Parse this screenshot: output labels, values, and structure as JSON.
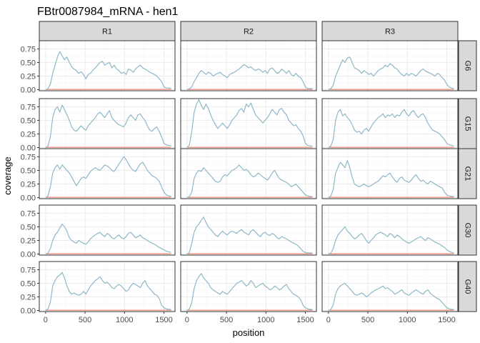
{
  "chart_data": {
    "type": "line",
    "title": "FBtr0087984_mRNA - hen1",
    "xlabel": "position",
    "ylabel": "coverage",
    "xlim": [
      -80,
      1640
    ],
    "ylim": [
      -0.02,
      0.9
    ],
    "x_ticks": [
      0,
      500,
      1000,
      1500
    ],
    "x_tick_labels": [
      "0",
      "500",
      "1000",
      "1500"
    ],
    "y_ticks": [
      0,
      0.25,
      0.5,
      0.75
    ],
    "y_tick_labels": [
      "0.00",
      "0.25",
      "0.50",
      "0.75"
    ],
    "columns": [
      "R1",
      "R2",
      "R3"
    ],
    "rows": [
      "G6",
      "G15",
      "G21",
      "G30",
      "G40"
    ],
    "grid": true,
    "colors": {
      "series_main": "#8fb8c8",
      "series_base": "#f08a78",
      "strip_fill": "#d9d9d9",
      "panel_border": "#333333",
      "grid_major": "#ebebeb",
      "grid_minor": "#f5f5f5"
    },
    "x": [
      0,
      30,
      60,
      90,
      120,
      150,
      180,
      210,
      240,
      270,
      300,
      330,
      360,
      390,
      420,
      450,
      480,
      510,
      540,
      570,
      600,
      630,
      660,
      690,
      720,
      750,
      780,
      810,
      840,
      870,
      900,
      930,
      960,
      990,
      1020,
      1050,
      1080,
      1110,
      1140,
      1170,
      1200,
      1230,
      1260,
      1290,
      1320,
      1350,
      1380,
      1410,
      1440,
      1470,
      1500,
      1530,
      1560,
      1590
    ],
    "baseline": [
      0.005,
      0.005,
      0.005,
      0.005,
      0.005,
      0.005,
      0.005,
      0.005,
      0.005,
      0.005,
      0.005,
      0.005,
      0.005,
      0.005,
      0.005,
      0.005,
      0.005,
      0.005,
      0.005,
      0.005,
      0.005,
      0.005,
      0.005,
      0.005,
      0.005,
      0.005,
      0.005,
      0.005,
      0.005,
      0.005,
      0.005,
      0.005,
      0.005,
      0.005,
      0.005,
      0.005,
      0.005,
      0.005,
      0.005,
      0.005,
      0.005,
      0.005,
      0.005,
      0.005,
      0.005,
      0.005,
      0.005,
      0.005,
      0.005,
      0.005,
      0.005,
      0.005,
      0.005,
      0.005
    ],
    "panels": [
      {
        "row": "G6",
        "col": "R1",
        "values": [
          0.0,
          0.02,
          0.1,
          0.3,
          0.45,
          0.6,
          0.7,
          0.62,
          0.55,
          0.6,
          0.5,
          0.42,
          0.38,
          0.35,
          0.3,
          0.33,
          0.28,
          0.2,
          0.28,
          0.3,
          0.36,
          0.4,
          0.45,
          0.5,
          0.52,
          0.45,
          0.48,
          0.5,
          0.4,
          0.45,
          0.38,
          0.35,
          0.3,
          0.32,
          0.28,
          0.38,
          0.36,
          0.32,
          0.38,
          0.42,
          0.45,
          0.4,
          0.38,
          0.35,
          0.32,
          0.3,
          0.28,
          0.25,
          0.2,
          0.15,
          0.05,
          0.03,
          0.03,
          0.02
        ]
      },
      {
        "row": "G6",
        "col": "R2",
        "values": [
          0.0,
          0.02,
          0.05,
          0.15,
          0.22,
          0.3,
          0.35,
          0.32,
          0.28,
          0.32,
          0.3,
          0.25,
          0.28,
          0.3,
          0.32,
          0.28,
          0.25,
          0.22,
          0.28,
          0.3,
          0.32,
          0.35,
          0.38,
          0.42,
          0.46,
          0.44,
          0.4,
          0.42,
          0.38,
          0.35,
          0.38,
          0.36,
          0.32,
          0.35,
          0.3,
          0.38,
          0.4,
          0.35,
          0.3,
          0.32,
          0.38,
          0.34,
          0.3,
          0.35,
          0.28,
          0.25,
          0.3,
          0.25,
          0.22,
          0.15,
          0.05,
          0.02,
          0.02,
          0.02
        ]
      },
      {
        "row": "G6",
        "col": "R3",
        "values": [
          0.0,
          0.02,
          0.08,
          0.25,
          0.35,
          0.45,
          0.55,
          0.5,
          0.58,
          0.6,
          0.5,
          0.4,
          0.38,
          0.35,
          0.3,
          0.35,
          0.32,
          0.28,
          0.3,
          0.25,
          0.3,
          0.35,
          0.38,
          0.4,
          0.45,
          0.42,
          0.48,
          0.45,
          0.4,
          0.38,
          0.32,
          0.28,
          0.25,
          0.3,
          0.26,
          0.3,
          0.28,
          0.25,
          0.3,
          0.35,
          0.38,
          0.34,
          0.32,
          0.3,
          0.28,
          0.25,
          0.3,
          0.28,
          0.22,
          0.18,
          0.1,
          0.05,
          0.03,
          0.02
        ]
      },
      {
        "row": "G15",
        "col": "R1",
        "values": [
          0.0,
          0.03,
          0.2,
          0.55,
          0.7,
          0.75,
          0.65,
          0.78,
          0.7,
          0.6,
          0.5,
          0.38,
          0.32,
          0.3,
          0.35,
          0.4,
          0.35,
          0.32,
          0.4,
          0.45,
          0.5,
          0.55,
          0.62,
          0.65,
          0.6,
          0.55,
          0.62,
          0.68,
          0.55,
          0.5,
          0.45,
          0.42,
          0.4,
          0.38,
          0.45,
          0.55,
          0.6,
          0.55,
          0.5,
          0.6,
          0.62,
          0.55,
          0.5,
          0.4,
          0.32,
          0.3,
          0.35,
          0.38,
          0.3,
          0.2,
          0.08,
          0.05,
          0.04,
          0.03
        ]
      },
      {
        "row": "G15",
        "col": "R2",
        "values": [
          0.0,
          0.05,
          0.3,
          0.65,
          0.8,
          0.88,
          0.78,
          0.7,
          0.8,
          0.72,
          0.6,
          0.5,
          0.42,
          0.35,
          0.4,
          0.45,
          0.4,
          0.35,
          0.42,
          0.5,
          0.55,
          0.6,
          0.68,
          0.72,
          0.65,
          0.8,
          0.75,
          0.82,
          0.7,
          0.6,
          0.55,
          0.5,
          0.45,
          0.5,
          0.55,
          0.62,
          0.7,
          0.65,
          0.6,
          0.7,
          0.72,
          0.65,
          0.6,
          0.5,
          0.45,
          0.4,
          0.42,
          0.35,
          0.3,
          0.22,
          0.08,
          0.04,
          0.03,
          0.03
        ]
      },
      {
        "row": "G15",
        "col": "R3",
        "values": [
          0.0,
          0.03,
          0.15,
          0.5,
          0.65,
          0.7,
          0.58,
          0.62,
          0.55,
          0.5,
          0.42,
          0.32,
          0.28,
          0.3,
          0.25,
          0.32,
          0.35,
          0.3,
          0.38,
          0.45,
          0.5,
          0.55,
          0.58,
          0.62,
          0.55,
          0.6,
          0.58,
          0.62,
          0.55,
          0.6,
          0.58,
          0.65,
          0.7,
          0.62,
          0.58,
          0.65,
          0.68,
          0.6,
          0.55,
          0.6,
          0.62,
          0.55,
          0.45,
          0.38,
          0.32,
          0.3,
          0.28,
          0.25,
          0.2,
          0.15,
          0.08,
          0.05,
          0.04,
          0.03
        ]
      },
      {
        "row": "G21",
        "col": "R1",
        "values": [
          0.0,
          0.03,
          0.2,
          0.45,
          0.55,
          0.6,
          0.52,
          0.6,
          0.55,
          0.5,
          0.45,
          0.38,
          0.3,
          0.22,
          0.28,
          0.35,
          0.38,
          0.35,
          0.42,
          0.48,
          0.52,
          0.55,
          0.52,
          0.5,
          0.55,
          0.6,
          0.58,
          0.55,
          0.5,
          0.48,
          0.55,
          0.62,
          0.68,
          0.75,
          0.7,
          0.62,
          0.55,
          0.5,
          0.48,
          0.55,
          0.62,
          0.65,
          0.58,
          0.5,
          0.45,
          0.4,
          0.38,
          0.35,
          0.3,
          0.2,
          0.1,
          0.05,
          0.03,
          0.02
        ]
      },
      {
        "row": "G21",
        "col": "R2",
        "values": [
          0.0,
          0.02,
          0.1,
          0.35,
          0.45,
          0.5,
          0.48,
          0.55,
          0.5,
          0.45,
          0.4,
          0.35,
          0.3,
          0.28,
          0.3,
          0.38,
          0.42,
          0.4,
          0.45,
          0.5,
          0.52,
          0.55,
          0.6,
          0.55,
          0.5,
          0.52,
          0.48,
          0.42,
          0.38,
          0.4,
          0.45,
          0.42,
          0.38,
          0.35,
          0.32,
          0.38,
          0.45,
          0.5,
          0.42,
          0.35,
          0.32,
          0.3,
          0.28,
          0.25,
          0.2,
          0.22,
          0.25,
          0.2,
          0.15,
          0.1,
          0.05,
          0.03,
          0.02,
          0.02
        ]
      },
      {
        "row": "G21",
        "col": "R3",
        "values": [
          0.0,
          0.03,
          0.15,
          0.45,
          0.55,
          0.65,
          0.6,
          0.55,
          0.68,
          0.55,
          0.38,
          0.25,
          0.22,
          0.2,
          0.22,
          0.25,
          0.22,
          0.2,
          0.22,
          0.25,
          0.28,
          0.3,
          0.35,
          0.4,
          0.38,
          0.42,
          0.45,
          0.38,
          0.32,
          0.28,
          0.35,
          0.38,
          0.32,
          0.3,
          0.28,
          0.32,
          0.38,
          0.42,
          0.35,
          0.3,
          0.32,
          0.28,
          0.25,
          0.3,
          0.28,
          0.25,
          0.22,
          0.2,
          0.18,
          0.1,
          0.05,
          0.03,
          0.02,
          0.02
        ]
      },
      {
        "row": "G30",
        "col": "R1",
        "values": [
          0.0,
          0.02,
          0.1,
          0.25,
          0.35,
          0.4,
          0.48,
          0.55,
          0.5,
          0.42,
          0.3,
          0.25,
          0.22,
          0.2,
          0.25,
          0.22,
          0.2,
          0.18,
          0.22,
          0.28,
          0.32,
          0.35,
          0.38,
          0.4,
          0.35,
          0.32,
          0.38,
          0.35,
          0.3,
          0.28,
          0.32,
          0.35,
          0.3,
          0.28,
          0.32,
          0.38,
          0.4,
          0.35,
          0.3,
          0.32,
          0.35,
          0.3,
          0.28,
          0.25,
          0.22,
          0.2,
          0.18,
          0.15,
          0.12,
          0.1,
          0.08,
          0.05,
          0.04,
          0.03
        ]
      },
      {
        "row": "G30",
        "col": "R2",
        "values": [
          0.0,
          0.03,
          0.2,
          0.4,
          0.5,
          0.55,
          0.62,
          0.68,
          0.58,
          0.5,
          0.45,
          0.4,
          0.35,
          0.32,
          0.38,
          0.42,
          0.38,
          0.35,
          0.4,
          0.42,
          0.4,
          0.38,
          0.42,
          0.45,
          0.4,
          0.38,
          0.35,
          0.42,
          0.45,
          0.4,
          0.35,
          0.32,
          0.38,
          0.4,
          0.36,
          0.34,
          0.38,
          0.35,
          0.3,
          0.28,
          0.32,
          0.3,
          0.28,
          0.25,
          0.22,
          0.2,
          0.18,
          0.15,
          0.1,
          0.05,
          0.03,
          0.02,
          0.02,
          0.02
        ]
      },
      {
        "row": "G30",
        "col": "R3",
        "values": [
          0.0,
          0.02,
          0.1,
          0.25,
          0.35,
          0.4,
          0.45,
          0.5,
          0.42,
          0.38,
          0.32,
          0.28,
          0.3,
          0.35,
          0.38,
          0.32,
          0.25,
          0.2,
          0.25,
          0.3,
          0.35,
          0.38,
          0.4,
          0.38,
          0.35,
          0.32,
          0.38,
          0.35,
          0.3,
          0.35,
          0.32,
          0.28,
          0.25,
          0.22,
          0.2,
          0.22,
          0.25,
          0.28,
          0.3,
          0.32,
          0.28,
          0.25,
          0.3,
          0.28,
          0.25,
          0.22,
          0.2,
          0.18,
          0.15,
          0.12,
          0.08,
          0.05,
          0.03,
          0.02
        ]
      },
      {
        "row": "G40",
        "col": "R1",
        "values": [
          0.0,
          0.03,
          0.15,
          0.45,
          0.55,
          0.62,
          0.65,
          0.7,
          0.6,
          0.45,
          0.35,
          0.3,
          0.32,
          0.3,
          0.28,
          0.3,
          0.35,
          0.3,
          0.38,
          0.45,
          0.5,
          0.55,
          0.58,
          0.62,
          0.55,
          0.5,
          0.52,
          0.48,
          0.42,
          0.4,
          0.45,
          0.48,
          0.45,
          0.4,
          0.35,
          0.38,
          0.45,
          0.5,
          0.48,
          0.45,
          0.42,
          0.5,
          0.55,
          0.45,
          0.4,
          0.35,
          0.3,
          0.28,
          0.22,
          0.1,
          0.05,
          0.03,
          0.02,
          0.02
        ]
      },
      {
        "row": "G40",
        "col": "R2",
        "values": [
          0.0,
          0.03,
          0.15,
          0.4,
          0.55,
          0.62,
          0.68,
          0.6,
          0.55,
          0.5,
          0.42,
          0.38,
          0.35,
          0.32,
          0.3,
          0.35,
          0.32,
          0.3,
          0.35,
          0.4,
          0.45,
          0.5,
          0.52,
          0.55,
          0.5,
          0.45,
          0.48,
          0.55,
          0.5,
          0.42,
          0.45,
          0.48,
          0.5,
          0.45,
          0.42,
          0.38,
          0.4,
          0.45,
          0.42,
          0.38,
          0.4,
          0.45,
          0.48,
          0.4,
          0.35,
          0.3,
          0.28,
          0.25,
          0.2,
          0.1,
          0.05,
          0.03,
          0.02,
          0.02
        ]
      },
      {
        "row": "G40",
        "col": "R3",
        "values": [
          0.0,
          0.02,
          0.1,
          0.3,
          0.4,
          0.45,
          0.48,
          0.5,
          0.45,
          0.4,
          0.35,
          0.3,
          0.28,
          0.3,
          0.32,
          0.3,
          0.25,
          0.28,
          0.32,
          0.35,
          0.38,
          0.4,
          0.42,
          0.45,
          0.4,
          0.42,
          0.38,
          0.35,
          0.3,
          0.32,
          0.35,
          0.38,
          0.32,
          0.3,
          0.28,
          0.32,
          0.35,
          0.38,
          0.35,
          0.32,
          0.3,
          0.35,
          0.38,
          0.32,
          0.28,
          0.25,
          0.22,
          0.2,
          0.15,
          0.1,
          0.05,
          0.03,
          0.02,
          0.02
        ]
      }
    ]
  }
}
